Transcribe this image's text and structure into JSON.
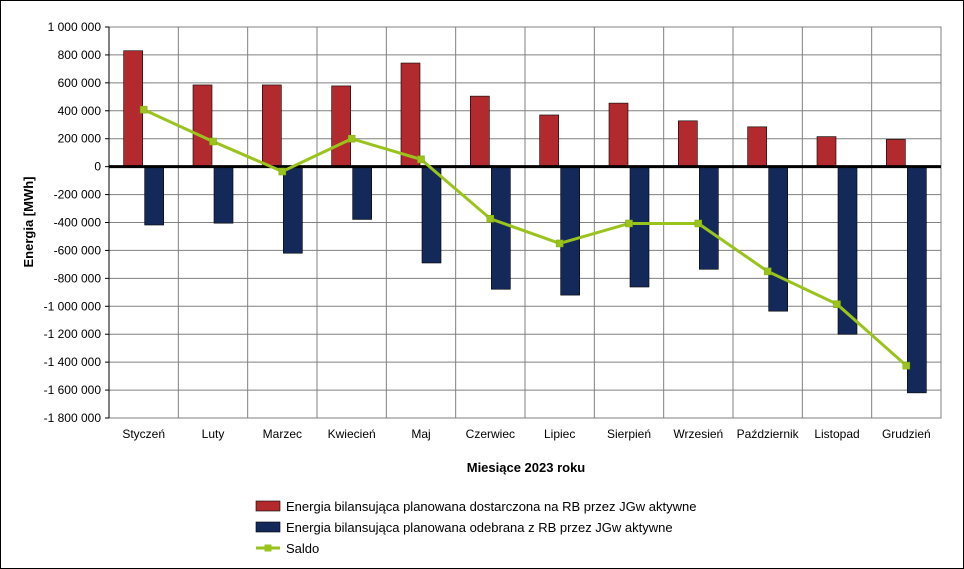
{
  "chart_data": {
    "type": "bar",
    "title": "",
    "xlabel": "Miesiące 2023 roku",
    "ylabel": "Energia [MWh]",
    "ylim": [
      -1800000,
      1000000
    ],
    "y_ticks": [
      1000000,
      800000,
      600000,
      400000,
      200000,
      0,
      -200000,
      -400000,
      -600000,
      -800000,
      -1000000,
      -1200000,
      -1400000,
      -1600000,
      -1800000
    ],
    "y_tick_labels": [
      "1 000 000",
      "800 000",
      "600 000",
      "400 000",
      "200 000",
      "0",
      "-200 000",
      "-400 000",
      "-600 000",
      "-800 000",
      "-1 000 000",
      "-1 200 000",
      "-1 400 000",
      "-1 600 000",
      "-1 800 000"
    ],
    "grid": true,
    "legend_position": "bottom",
    "categories": [
      "Styczeń",
      "Luty",
      "Marzec",
      "Kwiecień",
      "Maj",
      "Czerwiec",
      "Lipiec",
      "Sierpień",
      "Wrzesień",
      "Październik",
      "Listopad",
      "Grudzień"
    ],
    "series": [
      {
        "name": "Energia bilansująca planowana dostarczona na RB przez JGw aktywne",
        "type": "bar",
        "color": "#b22a2e",
        "values": [
          830000,
          585000,
          585000,
          578000,
          742000,
          505000,
          370000,
          455000,
          328000,
          285000,
          215000,
          195000
        ]
      },
      {
        "name": "Energia bilansująca planowana odebrana z RB przez JGw aktywne",
        "type": "bar",
        "color": "#13295a",
        "values": [
          -418000,
          -405000,
          -620000,
          -378000,
          -690000,
          -878000,
          -920000,
          -862000,
          -735000,
          -1035000,
          -1200000,
          -1620000
        ]
      },
      {
        "name": "Saldo",
        "type": "line",
        "color": "#9ac31c",
        "values": [
          408000,
          180000,
          -35000,
          200000,
          52000,
          -373000,
          -550000,
          -407000,
          -407000,
          -750000,
          -985000,
          -1425000
        ]
      }
    ]
  }
}
